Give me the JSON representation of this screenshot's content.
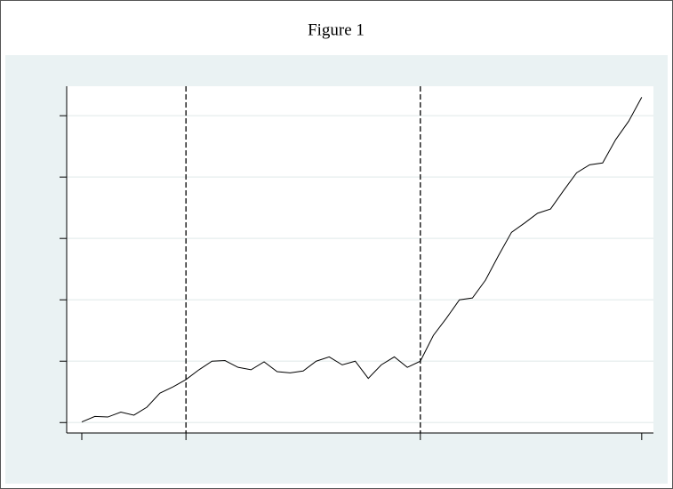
{
  "chart_data": {
    "type": "line",
    "title": "Figure 1",
    "x": [
      0,
      1,
      2,
      3,
      4,
      5,
      6,
      7,
      8,
      9,
      10,
      11,
      12,
      13,
      14,
      15,
      16,
      17,
      18,
      19,
      20,
      21,
      22,
      23,
      24,
      25,
      26,
      27,
      28,
      29,
      30,
      31,
      32,
      33,
      34,
      35,
      36,
      37,
      38,
      39,
      40,
      41,
      42,
      43
    ],
    "series": [
      {
        "color": "#000000",
        "values": [
          0.01,
          0.1,
          0.09,
          0.17,
          0.12,
          0.25,
          0.48,
          0.58,
          0.7,
          0.86,
          1.0,
          1.01,
          0.9,
          0.86,
          0.99,
          0.83,
          0.81,
          0.84,
          1.0,
          1.07,
          0.94,
          1.0,
          0.72,
          0.94,
          1.07,
          0.9,
          1.0,
          1.42,
          1.7,
          2.0,
          2.03,
          2.32,
          2.72,
          3.1,
          3.25,
          3.41,
          3.48,
          3.78,
          4.07,
          4.2,
          4.23,
          4.61,
          4.91,
          5.3
        ]
      }
    ],
    "xlim": [
      -1.16,
      43.9
    ],
    "xticks": [
      0,
      8,
      26,
      43
    ],
    "ylim": [
      -0.17,
      5.48
    ],
    "yticks": [
      0,
      1,
      2,
      3,
      4,
      5
    ],
    "vlines": [
      8,
      26
    ],
    "grid": true
  }
}
